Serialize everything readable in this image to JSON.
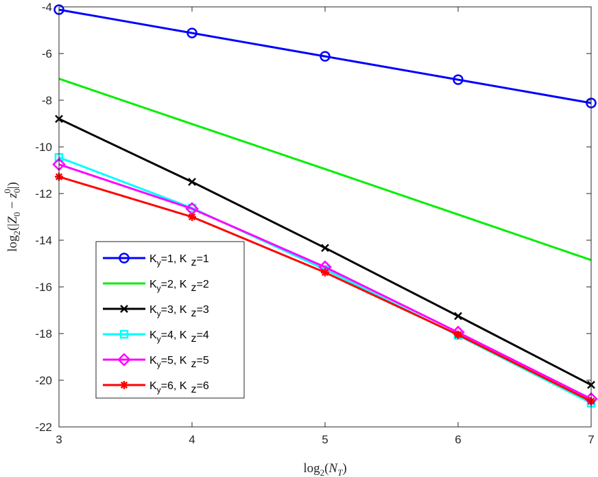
{
  "chart_data": {
    "type": "line",
    "title": "",
    "xlabel": "log2(NT)",
    "ylabel": "log2(|Z0 − z0^0|)",
    "xlim": [
      3,
      7
    ],
    "ylim": [
      -22,
      -4
    ],
    "x_ticks": [
      3,
      4,
      5,
      6,
      7
    ],
    "y_ticks": [
      -4,
      -6,
      -8,
      -10,
      -12,
      -14,
      -16,
      -18,
      -20,
      -22
    ],
    "x_tick_labels": [
      "3",
      "4",
      "5",
      "6",
      "7"
    ],
    "y_tick_labels": [
      "-4",
      "-6",
      "-8",
      "-10",
      "-12",
      "-14",
      "-16",
      "-18",
      "-20",
      "-22"
    ],
    "grid": false,
    "legend_position": "lower-left",
    "x": [
      3,
      4,
      5,
      6,
      7
    ],
    "series": [
      {
        "name": "Ky=1, K z=1",
        "legend": {
          "a": "K",
          "sub": "y",
          "b": "=1, K",
          "c": "z",
          "d": "=1"
        },
        "color": "#0000ff",
        "marker": "circle",
        "values": [
          -4.12,
          -5.12,
          -6.12,
          -7.12,
          -8.12
        ]
      },
      {
        "name": "Ky=2, K z=2",
        "legend": {
          "a": "K",
          "sub": "y",
          "b": "=2, K",
          "c": "z",
          "d": "=2"
        },
        "color": "#00ee00",
        "marker": "none",
        "values": [
          -7.08,
          -9.02,
          -10.95,
          -12.9,
          -14.85
        ]
      },
      {
        "name": "Ky=3, K z=3",
        "legend": {
          "a": "K",
          "sub": "y",
          "b": "=3, K",
          "c": "z",
          "d": "=3"
        },
        "color": "#000000",
        "marker": "x",
        "values": [
          -8.8,
          -11.5,
          -14.33,
          -17.25,
          -20.2
        ]
      },
      {
        "name": "Ky=4, K z=4",
        "legend": {
          "a": "K",
          "sub": "y",
          "b": "=4, K",
          "c": "z",
          "d": "=4"
        },
        "color": "#00ffff",
        "marker": "square",
        "values": [
          -10.45,
          -12.62,
          -15.25,
          -18.08,
          -20.98
        ]
      },
      {
        "name": "Ky=5, K z=5",
        "legend": {
          "a": "K",
          "sub": "y",
          "b": "=5, K",
          "c": "z",
          "d": "=5"
        },
        "color": "#ff00ff",
        "marker": "diamond",
        "values": [
          -10.75,
          -12.65,
          -15.15,
          -17.95,
          -20.8
        ]
      },
      {
        "name": "Ky=6, K z=6",
        "legend": {
          "a": "K",
          "sub": "y",
          "b": "=6, K",
          "c": "z",
          "d": "=6"
        },
        "color": "#ff0000",
        "marker": "asterisk",
        "values": [
          -11.28,
          -13.0,
          -15.38,
          -18.05,
          -20.9
        ]
      }
    ]
  }
}
